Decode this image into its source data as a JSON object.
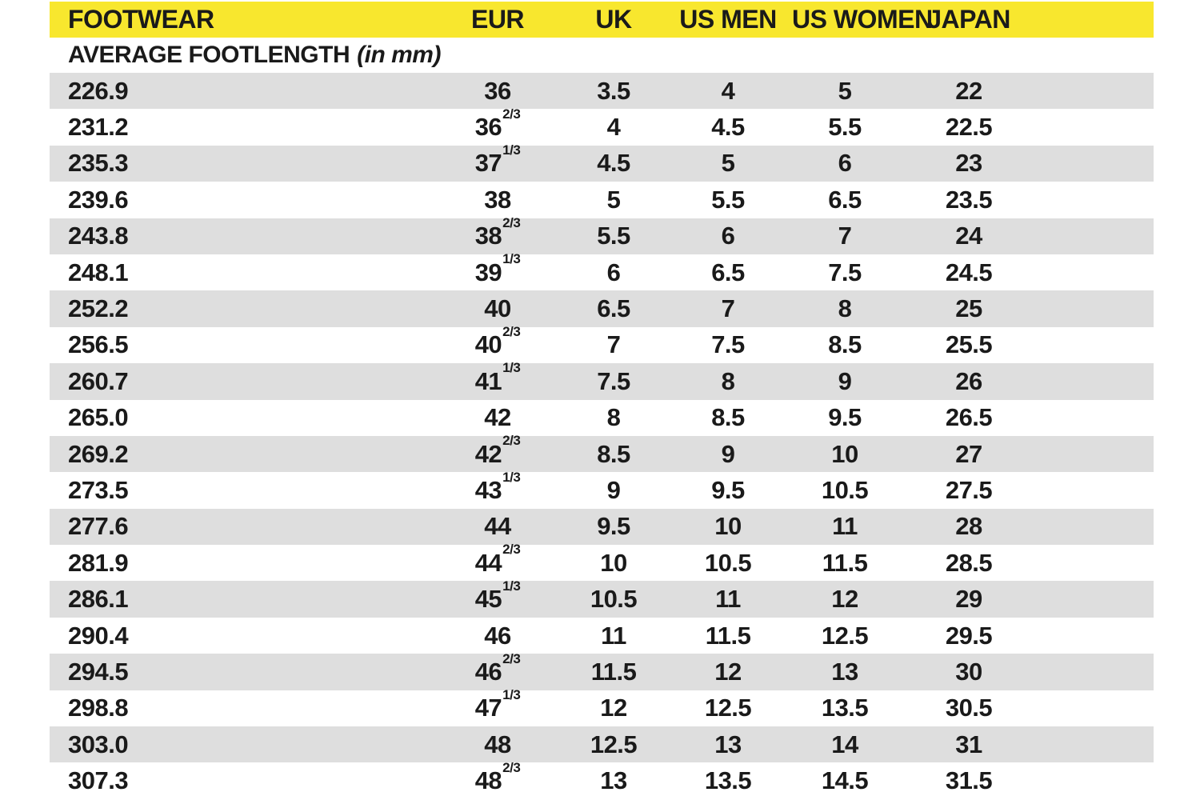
{
  "colors": {
    "header_bg": "#f8e72e",
    "row_alt_bg": "#dedede",
    "text": "#1a1a1a",
    "page_bg": "#ffffff"
  },
  "table": {
    "columns": [
      {
        "key": "footlength",
        "label": "FOOTWEAR",
        "align": "left"
      },
      {
        "key": "eur",
        "label": "EUR",
        "align": "center"
      },
      {
        "key": "uk",
        "label": "UK",
        "align": "center"
      },
      {
        "key": "us_men",
        "label": "US MEN",
        "align": "center"
      },
      {
        "key": "us_women",
        "label": "US WOMEN",
        "align": "center"
      },
      {
        "key": "japan",
        "label": "JAPAN",
        "align": "center"
      }
    ],
    "subheader": {
      "text": "AVERAGE FOOTLENGTH",
      "note": "(in mm)"
    },
    "rows": [
      {
        "footlength": "226.9",
        "eur": "36",
        "eur_sup": "",
        "uk": "3.5",
        "us_men": "4",
        "us_women": "5",
        "japan": "22"
      },
      {
        "footlength": "231.2",
        "eur": "36",
        "eur_sup": "2/3",
        "uk": "4",
        "us_men": "4.5",
        "us_women": "5.5",
        "japan": "22.5"
      },
      {
        "footlength": "235.3",
        "eur": "37",
        "eur_sup": "1/3",
        "uk": "4.5",
        "us_men": "5",
        "us_women": "6",
        "japan": "23"
      },
      {
        "footlength": "239.6",
        "eur": "38",
        "eur_sup": "",
        "uk": "5",
        "us_men": "5.5",
        "us_women": "6.5",
        "japan": "23.5"
      },
      {
        "footlength": "243.8",
        "eur": "38",
        "eur_sup": "2/3",
        "uk": "5.5",
        "us_men": "6",
        "us_women": "7",
        "japan": "24"
      },
      {
        "footlength": "248.1",
        "eur": "39",
        "eur_sup": "1/3",
        "uk": "6",
        "us_men": "6.5",
        "us_women": "7.5",
        "japan": "24.5"
      },
      {
        "footlength": "252.2",
        "eur": "40",
        "eur_sup": "",
        "uk": "6.5",
        "us_men": "7",
        "us_women": "8",
        "japan": "25"
      },
      {
        "footlength": "256.5",
        "eur": "40",
        "eur_sup": "2/3",
        "uk": "7",
        "us_men": "7.5",
        "us_women": "8.5",
        "japan": "25.5"
      },
      {
        "footlength": "260.7",
        "eur": "41",
        "eur_sup": "1/3",
        "uk": "7.5",
        "us_men": "8",
        "us_women": "9",
        "japan": "26"
      },
      {
        "footlength": "265.0",
        "eur": "42",
        "eur_sup": "",
        "uk": "8",
        "us_men": "8.5",
        "us_women": "9.5",
        "japan": "26.5"
      },
      {
        "footlength": "269.2",
        "eur": "42",
        "eur_sup": "2/3",
        "uk": "8.5",
        "us_men": "9",
        "us_women": "10",
        "japan": "27"
      },
      {
        "footlength": "273.5",
        "eur": "43",
        "eur_sup": "1/3",
        "uk": "9",
        "us_men": "9.5",
        "us_women": "10.5",
        "japan": "27.5"
      },
      {
        "footlength": "277.6",
        "eur": "44",
        "eur_sup": "",
        "uk": "9.5",
        "us_men": "10",
        "us_women": "11",
        "japan": "28"
      },
      {
        "footlength": "281.9",
        "eur": "44",
        "eur_sup": "2/3",
        "uk": "10",
        "us_men": "10.5",
        "us_women": "11.5",
        "japan": "28.5"
      },
      {
        "footlength": "286.1",
        "eur": "45",
        "eur_sup": "1/3",
        "uk": "10.5",
        "us_men": "11",
        "us_women": "12",
        "japan": "29"
      },
      {
        "footlength": "290.4",
        "eur": "46",
        "eur_sup": "",
        "uk": "11",
        "us_men": "11.5",
        "us_women": "12.5",
        "japan": "29.5"
      },
      {
        "footlength": "294.5",
        "eur": "46",
        "eur_sup": "2/3",
        "uk": "11.5",
        "us_men": "12",
        "us_women": "13",
        "japan": "30"
      },
      {
        "footlength": "298.8",
        "eur": "47",
        "eur_sup": "1/3",
        "uk": "12",
        "us_men": "12.5",
        "us_women": "13.5",
        "japan": "30.5"
      },
      {
        "footlength": "303.0",
        "eur": "48",
        "eur_sup": "",
        "uk": "12.5",
        "us_men": "13",
        "us_women": "14",
        "japan": "31"
      },
      {
        "footlength": "307.3",
        "eur": "48",
        "eur_sup": "2/3",
        "uk": "13",
        "us_men": "13.5",
        "us_women": "14.5",
        "japan": "31.5"
      }
    ]
  }
}
